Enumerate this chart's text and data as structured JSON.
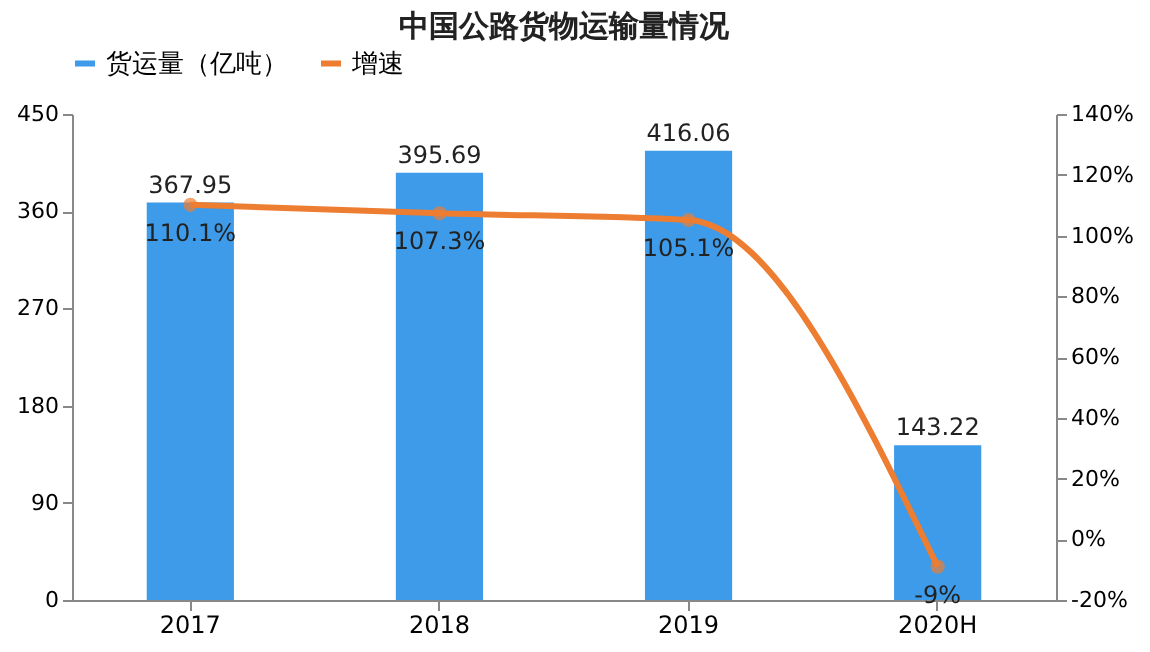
{
  "chart_data": {
    "type": "bar",
    "title": "中国公路货物运输量情况",
    "categories": [
      "2017",
      "2018",
      "2019",
      "2020H"
    ],
    "series": [
      {
        "name": "货运量（亿吨）",
        "color": "#3d9be9",
        "values": [
          367.95,
          395.69,
          416.06,
          143.22
        ],
        "value_labels": [
          "367.95",
          "395.69",
          "416.06",
          "143.22"
        ]
      },
      {
        "name": "增速",
        "type": "line",
        "axis": "y2",
        "color": "#ed7d31",
        "values": [
          110.1,
          107.3,
          105.1,
          -9
        ],
        "value_labels": [
          "110.1%",
          "107.3%",
          "105.1%",
          "-9%"
        ],
        "marker": "circle"
      }
    ],
    "ylim": [
      0,
      450
    ],
    "yticks": [
      0,
      90,
      180,
      270,
      360,
      450
    ],
    "y2lim": [
      -20,
      140
    ],
    "y2ticks": [
      {
        "value": -20,
        "label": "-20%"
      },
      {
        "value": 0,
        "label": "0%"
      },
      {
        "value": 20,
        "label": "20%"
      },
      {
        "value": 40,
        "label": "40%"
      },
      {
        "value": 60,
        "label": "60%"
      },
      {
        "value": 80,
        "label": "80%"
      },
      {
        "value": 100,
        "label": "100%"
      },
      {
        "value": 120,
        "label": "120%"
      },
      {
        "value": 140,
        "label": "140%"
      }
    ],
    "legend": "top",
    "grid": false
  }
}
